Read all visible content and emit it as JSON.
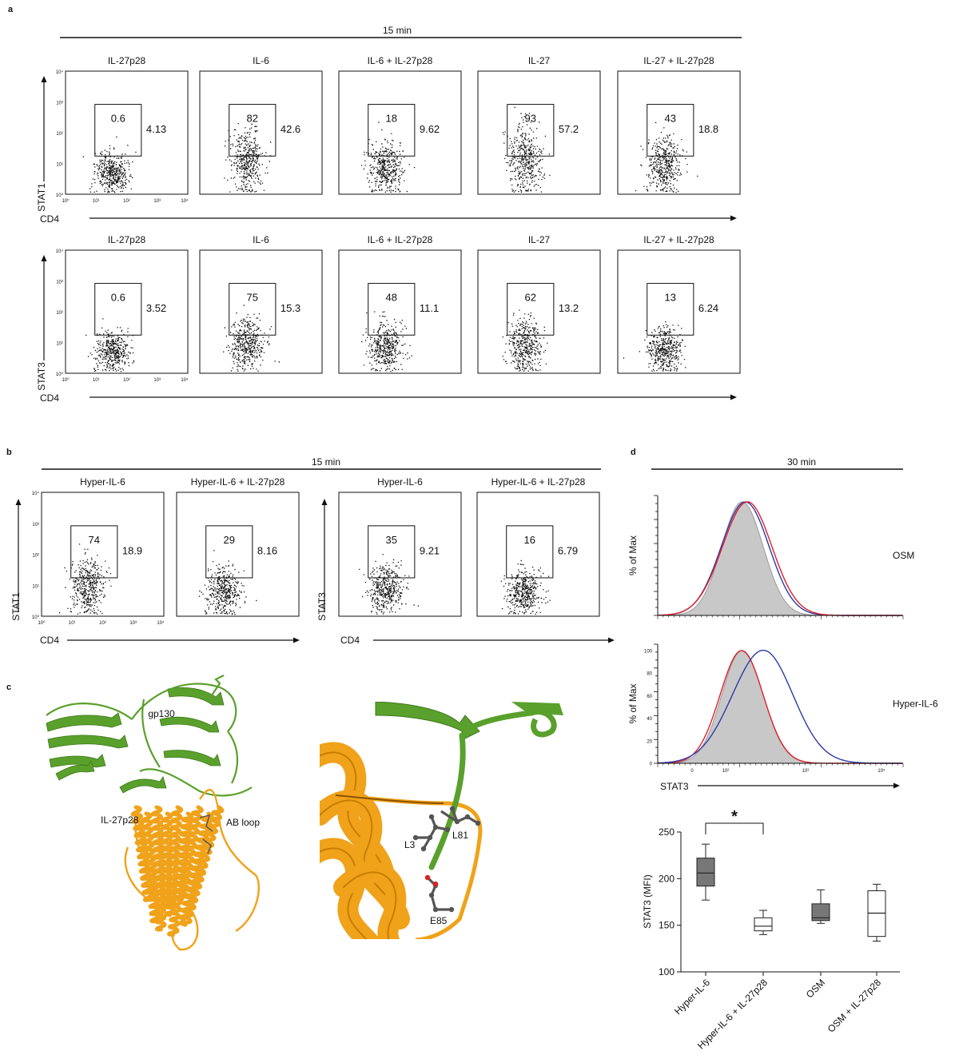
{
  "panel_letters": {
    "a": "a",
    "b": "b",
    "c": "c",
    "d": "d"
  },
  "panel_a": {
    "time_label": "15 min",
    "x_axis_label": "CD4",
    "x_ticks": [
      "10⁰",
      "10¹",
      "10²",
      "10³",
      "10⁴"
    ],
    "y_ticks": [
      "10⁰",
      "10¹",
      "10²",
      "10³",
      "10⁴"
    ],
    "conditions": [
      "IL-27p28",
      "IL-6",
      "IL-6 + IL-27p28",
      "IL-27",
      "IL-27 + IL-27p28"
    ],
    "rows": [
      {
        "y_axis_label": "STAT1",
        "gate_pct": [
          "0.6",
          "82",
          "18",
          "93",
          "43"
        ],
        "mfi": [
          "4.13",
          "42.6",
          "9.62",
          "57.2",
          "18.8"
        ]
      },
      {
        "y_axis_label": "STAT3",
        "gate_pct": [
          "0.6",
          "75",
          "48",
          "62",
          "13"
        ],
        "mfi": [
          "3.52",
          "15.3",
          "11.1",
          "13.2",
          "6.24"
        ]
      }
    ]
  },
  "panel_b": {
    "time_label": "15 min",
    "x_axis_label": "CD4",
    "x_ticks": [
      "10⁰",
      "10¹",
      "10²",
      "10³",
      "10⁴"
    ],
    "y_ticks": [
      "10⁰",
      "10¹",
      "10²",
      "10³",
      "10⁴"
    ],
    "groups": [
      {
        "y_axis_label": "STAT1",
        "conditions": [
          "Hyper-IL-6",
          "Hyper-IL-6 + IL-27p28"
        ],
        "gate_pct": [
          "74",
          "29"
        ],
        "mfi": [
          "18.9",
          "8.16"
        ]
      },
      {
        "y_axis_label": "STAT3",
        "conditions": [
          "Hyper-IL-6",
          "Hyper-IL-6 + IL-27p28"
        ],
        "gate_pct": [
          "35",
          "16"
        ],
        "mfi": [
          "9.21",
          "6.79"
        ]
      }
    ]
  },
  "panel_c": {
    "labels": {
      "gp130": "gp130",
      "il27p28": "IL-27p28",
      "ab_loop": "AB loop",
      "l3": "L3",
      "l81": "L81",
      "e85": "E85"
    },
    "colors": {
      "gp130": "#5aa02c",
      "il27p28": "#f0a21a",
      "residue": "#555555",
      "oxygen": "#e02020"
    }
  },
  "panel_d": {
    "time_label": "30 min",
    "histograms": [
      {
        "title": "OSM",
        "y_axis_label": "% of Max",
        "y_ticks": []
      },
      {
        "title": "Hyper-IL-6",
        "y_axis_label": "% of Max",
        "y_ticks": [
          "0",
          "20",
          "40",
          "60",
          "80",
          "100"
        ]
      }
    ],
    "x_axis_label": "STAT3",
    "x_ticks": [
      "0",
      "10²",
      "10³",
      "10⁴"
    ],
    "histogram_colors": {
      "control": "#c8c8c8",
      "red": "#e0212b",
      "blue": "#2b3aa8"
    }
  },
  "chart_data": {
    "type": "box",
    "categories": [
      "Hyper-IL-6",
      "Hyper-IL-6 + IL-27p28",
      "OSM",
      "OSM + IL-27p28"
    ],
    "ylabel": "STAT3 (MFI)",
    "ylim": [
      100,
      250
    ],
    "yticks": [
      100,
      150,
      200,
      250
    ],
    "boxes": [
      {
        "min": 177,
        "q1": 192,
        "median": 206,
        "q3": 222,
        "max": 237,
        "fill": "grey"
      },
      {
        "min": 140,
        "q1": 144,
        "median": 149,
        "q3": 158,
        "max": 166,
        "fill": "white"
      },
      {
        "min": 152,
        "q1": 155,
        "median": 158,
        "q3": 173,
        "max": 188,
        "fill": "grey"
      },
      {
        "min": 133,
        "q1": 138,
        "median": 163,
        "q3": 187,
        "max": 194,
        "fill": "white"
      }
    ],
    "significance": {
      "from": 0,
      "to": 1,
      "label": "*"
    },
    "colors": {
      "grey": "#777777",
      "white": "#ffffff",
      "stroke": "#222222"
    }
  }
}
